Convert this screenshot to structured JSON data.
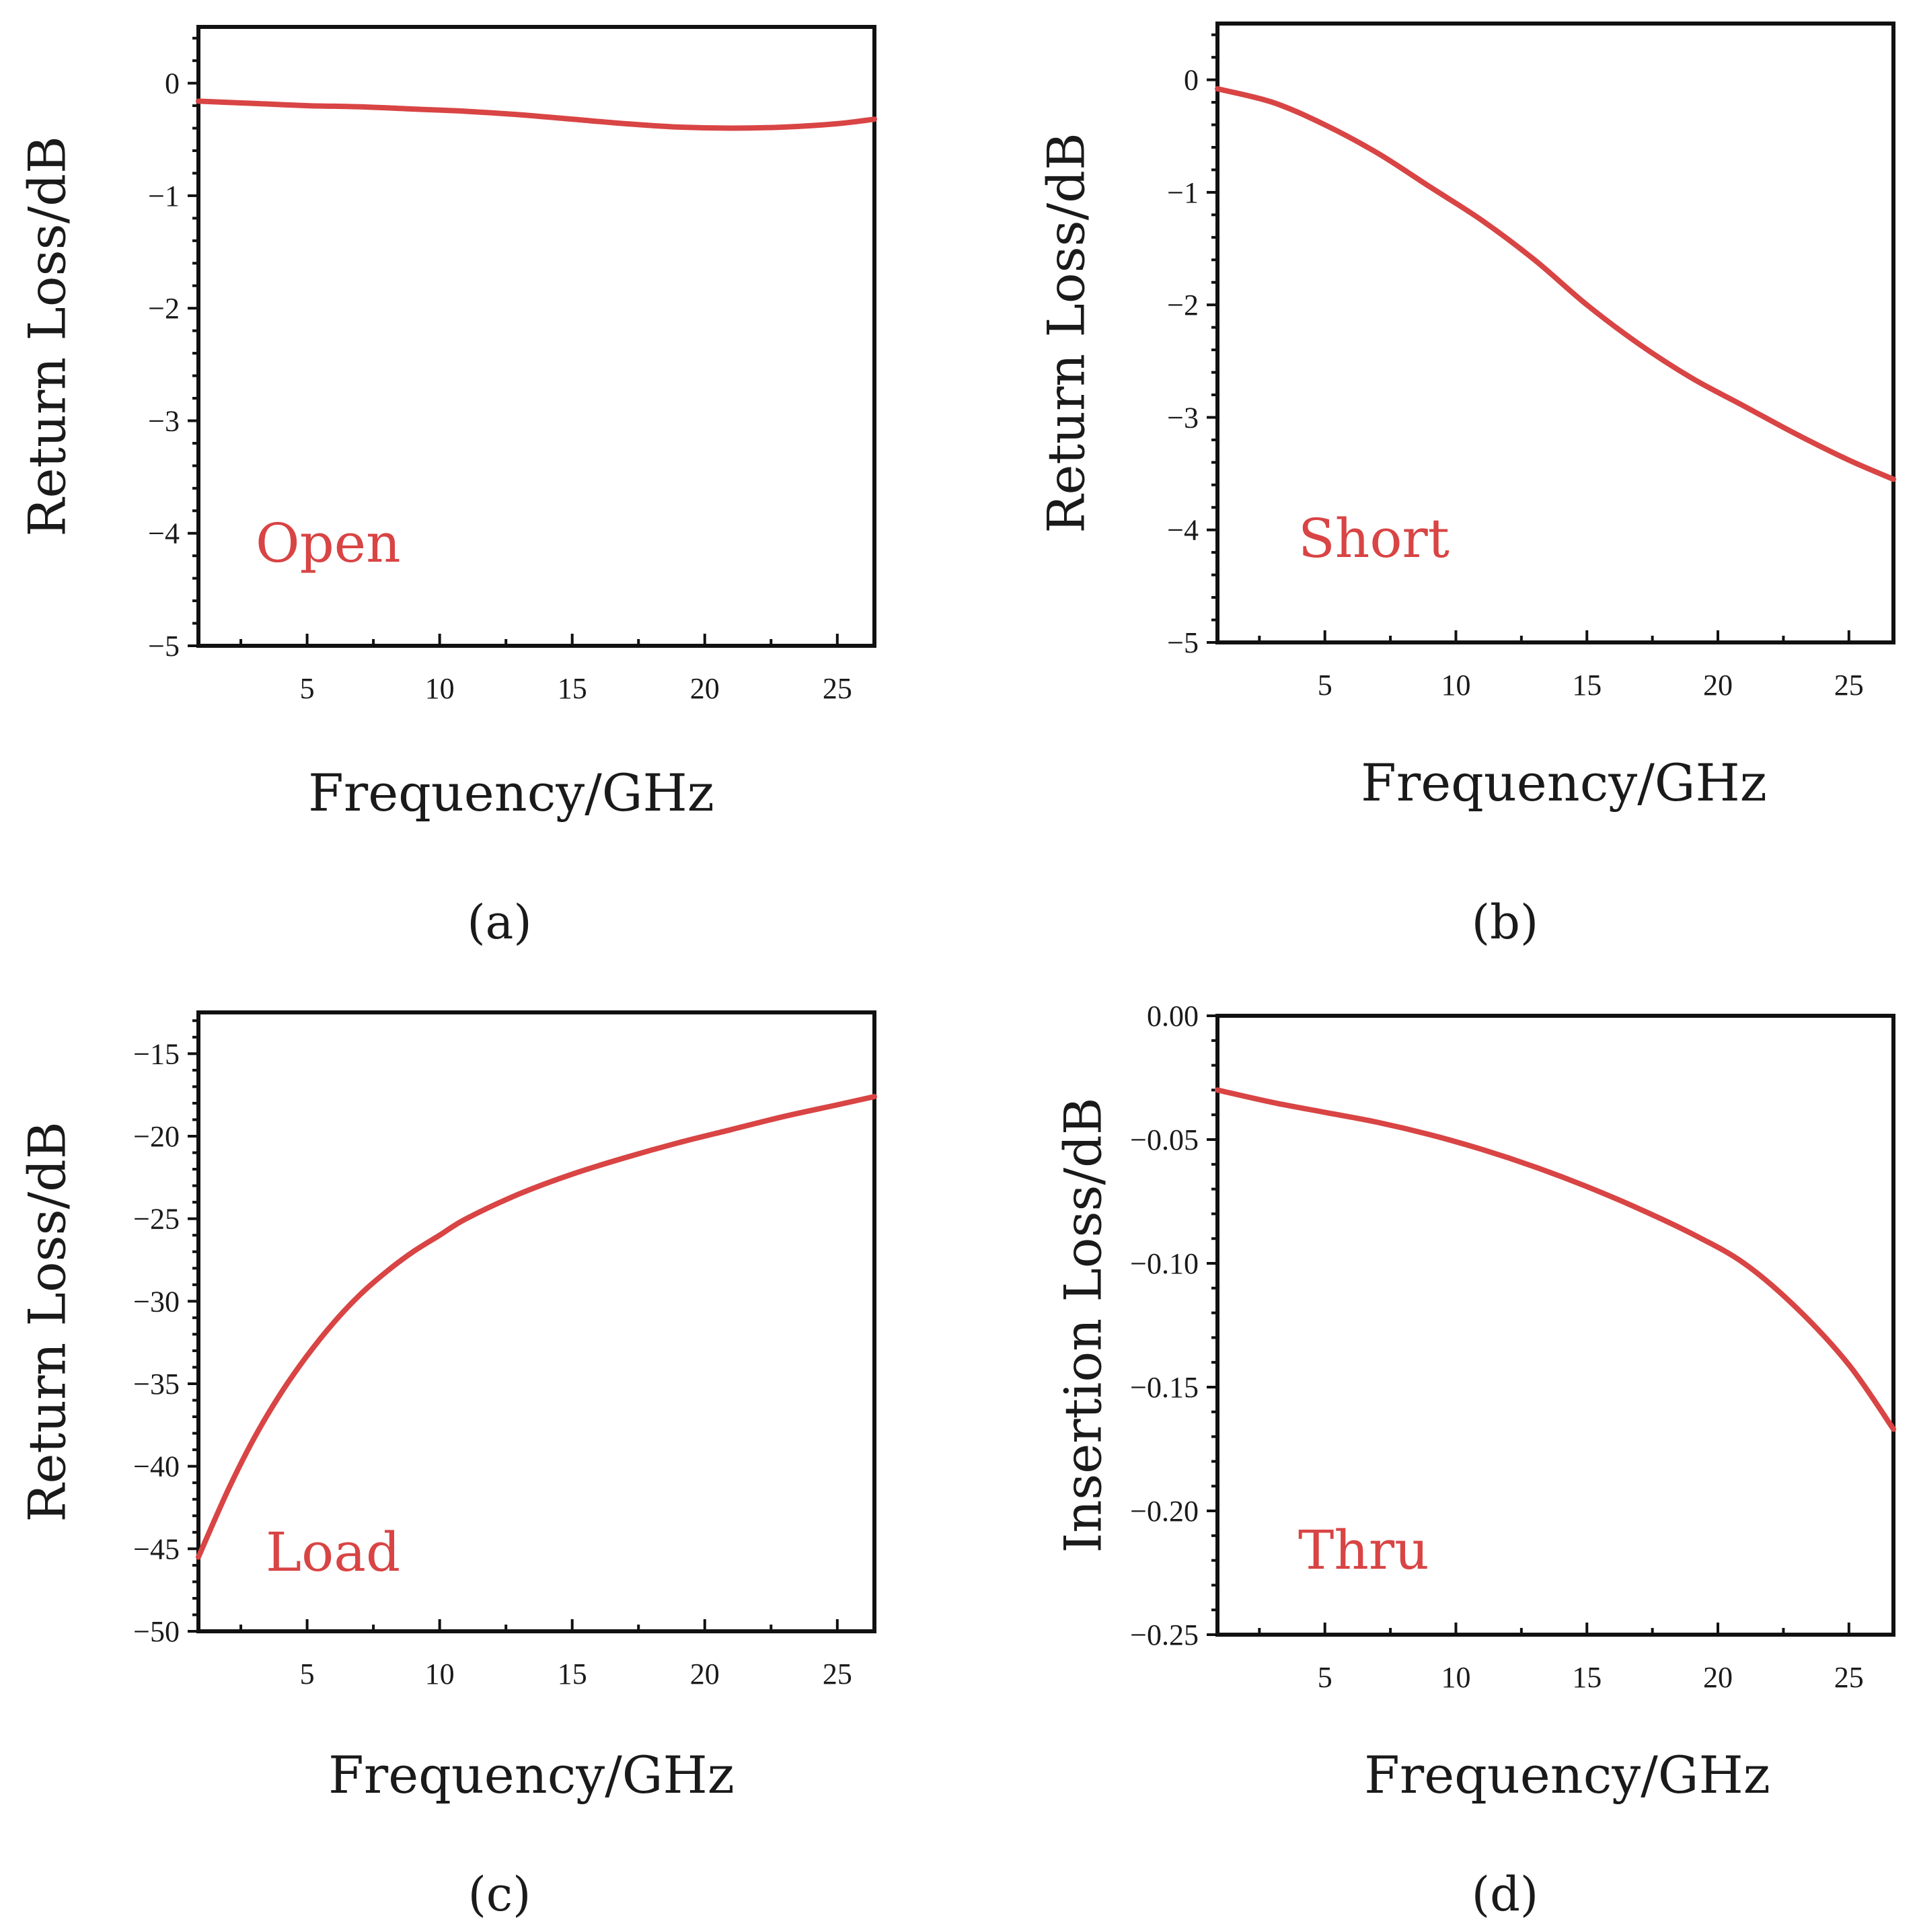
{
  "chart_data": [
    {
      "type": "line",
      "panel_label": "(a)",
      "xlabel": "Frequency/GHz",
      "ylabel": "Return Loss/dB",
      "curve_label": "Open",
      "xlim": [
        0.9,
        26.4
      ],
      "ylim": [
        -5,
        0.5
      ],
      "x_ticks": [
        5,
        10,
        15,
        20,
        25
      ],
      "x_tick_labels": [
        "5",
        "10",
        "15",
        "20",
        "25"
      ],
      "y_ticks": [
        0,
        -1,
        -2,
        -3,
        -4,
        -5
      ],
      "y_tick_labels": [
        "0",
        "−1",
        "−2",
        "−3",
        "−4",
        "−5"
      ],
      "series": [
        {
          "name": "Open",
          "x": [
            0.9,
            3,
            5,
            7,
            9,
            11,
            13,
            15,
            17,
            19,
            21,
            23,
            25,
            26.4
          ],
          "y": [
            -0.16,
            -0.18,
            -0.2,
            -0.21,
            -0.23,
            -0.25,
            -0.28,
            -0.32,
            -0.36,
            -0.39,
            -0.4,
            -0.39,
            -0.36,
            -0.32
          ]
        }
      ]
    },
    {
      "type": "line",
      "panel_label": "(b)",
      "xlabel": "Frequency/GHz",
      "ylabel": "Return Loss/dB",
      "curve_label": "Short",
      "xlim": [
        0.9,
        26.7
      ],
      "ylim": [
        -5,
        0.5
      ],
      "x_ticks": [
        5,
        10,
        15,
        20,
        25
      ],
      "x_tick_labels": [
        "5",
        "10",
        "15",
        "20",
        "25"
      ],
      "y_ticks": [
        0,
        -1,
        -2,
        -3,
        -4,
        -5
      ],
      "y_tick_labels": [
        "0",
        "−1",
        "−2",
        "−3",
        "−4",
        "−5"
      ],
      "series": [
        {
          "name": "Short",
          "x": [
            0.9,
            3,
            5,
            7,
            9,
            11,
            13,
            15,
            17,
            19,
            21,
            23,
            25,
            26.7
          ],
          "y": [
            -0.08,
            -0.2,
            -0.4,
            -0.65,
            -0.95,
            -1.25,
            -1.6,
            -2.0,
            -2.35,
            -2.65,
            -2.9,
            -3.15,
            -3.38,
            -3.55
          ]
        }
      ]
    },
    {
      "type": "line",
      "panel_label": "(c)",
      "xlabel": "Frequency/GHz",
      "ylabel": "Return Loss/dB",
      "curve_label": "Load",
      "xlim": [
        0.9,
        26.4
      ],
      "ylim": [
        -50,
        -12.5
      ],
      "x_ticks": [
        5,
        10,
        15,
        20,
        25
      ],
      "x_tick_labels": [
        "5",
        "10",
        "15",
        "20",
        "25"
      ],
      "y_ticks": [
        -15,
        -20,
        -25,
        -30,
        -35,
        -40,
        -45,
        -50
      ],
      "y_tick_labels": [
        "−15",
        "−20",
        "−25",
        "−30",
        "−35",
        "−40",
        "−45",
        "−50"
      ],
      "series": [
        {
          "name": "Load",
          "x": [
            0.9,
            2,
            3,
            4,
            5,
            6,
            7,
            8,
            9,
            10,
            11,
            13,
            15,
            17,
            19,
            21,
            23,
            25,
            26.4
          ],
          "y": [
            -45.5,
            -41.5,
            -38.3,
            -35.6,
            -33.3,
            -31.3,
            -29.6,
            -28.2,
            -27.0,
            -26.0,
            -25.0,
            -23.5,
            -22.3,
            -21.3,
            -20.4,
            -19.6,
            -18.8,
            -18.1,
            -17.6
          ]
        }
      ]
    },
    {
      "type": "line",
      "panel_label": "(d)",
      "xlabel": "Frequency/GHz",
      "ylabel": "Insertion Loss/dB",
      "curve_label": "Thru",
      "xlim": [
        0.9,
        26.7
      ],
      "ylim": [
        -0.25,
        0.0
      ],
      "x_ticks": [
        5,
        10,
        15,
        20,
        25
      ],
      "x_tick_labels": [
        "5",
        "10",
        "15",
        "20",
        "25"
      ],
      "y_ticks": [
        0,
        -0.05,
        -0.1,
        -0.15,
        -0.2,
        -0.25
      ],
      "y_tick_labels": [
        "0.00",
        "−0.05",
        "−0.10",
        "−0.15",
        "−0.20",
        "−0.25"
      ],
      "series": [
        {
          "name": "Thru",
          "x": [
            0.9,
            3,
            5,
            7,
            9,
            11,
            13,
            15,
            17,
            19,
            21,
            23,
            25,
            26.7
          ],
          "y": [
            -0.03,
            -0.035,
            -0.039,
            -0.043,
            -0.048,
            -0.054,
            -0.061,
            -0.069,
            -0.078,
            -0.088,
            -0.1,
            -0.118,
            -0.141,
            -0.167
          ]
        }
      ]
    }
  ],
  "style": {
    "curve_color": "#d94444",
    "axis_color": "#111111",
    "text_color": "#1a1a1a"
  }
}
